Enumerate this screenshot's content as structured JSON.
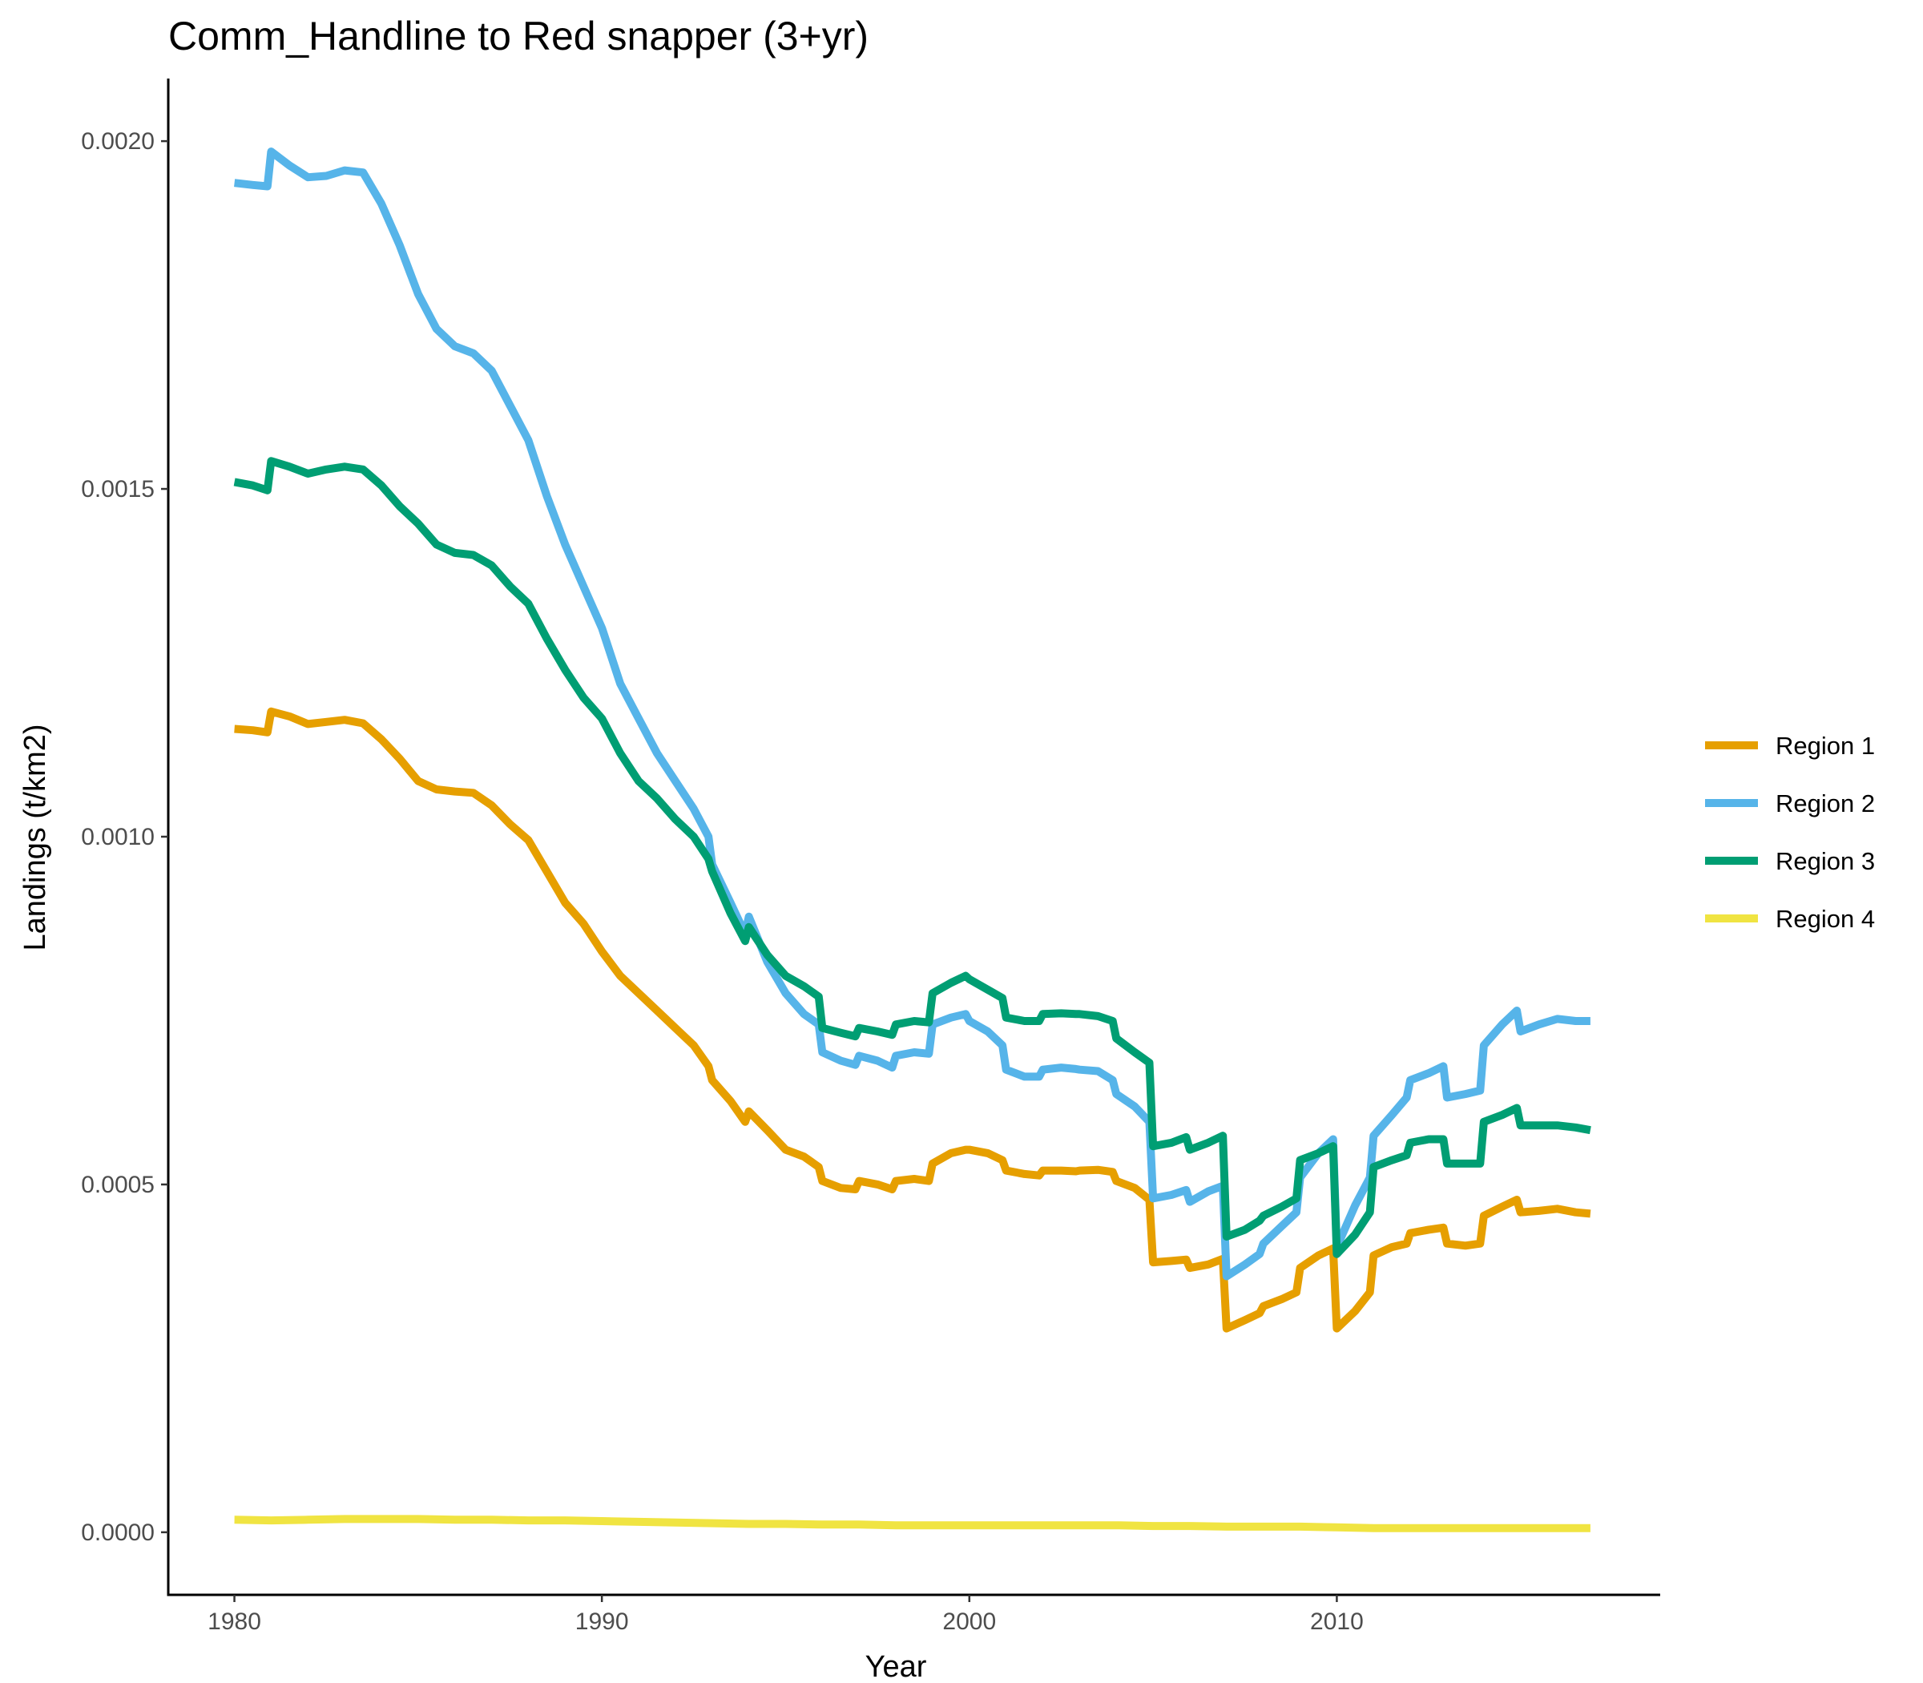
{
  "chart_data": {
    "type": "line",
    "title": "Comm_Handline to Red snapper (3+yr)",
    "xlabel": "Year",
    "ylabel": "Landings (t/km2)",
    "xlim": [
      1978.2,
      2018.8
    ],
    "ylim": [
      -9e-05,
      0.00209
    ],
    "x_ticks": [
      1980,
      1990,
      2000,
      2010
    ],
    "x_tick_labels": [
      "1980",
      "1990",
      "2000",
      "2010"
    ],
    "y_ticks": [
      0,
      0.0005,
      0.001,
      0.0015,
      0.002
    ],
    "y_tick_labels": [
      "0.0000",
      "0.0005",
      "0.0010",
      "0.0015",
      "0.0020"
    ],
    "grid": false,
    "legend_position": "right",
    "series": [
      {
        "name": "Region 1",
        "color": "#E69F00",
        "x": [
          1980.0,
          1980.5,
          1980.9,
          1981.0,
          1981.5,
          1982.0,
          1982.5,
          1983.0,
          1983.5,
          1984.0,
          1984.5,
          1985.0,
          1985.5,
          1986.0,
          1986.5,
          1987.0,
          1987.5,
          1988.0,
          1988.5,
          1989.0,
          1989.5,
          1990.0,
          1990.5,
          1991.0,
          1991.5,
          1992.0,
          1992.5,
          1992.9,
          1993.0,
          1993.5,
          1993.9,
          1994.0,
          1994.5,
          1995.0,
          1995.5,
          1995.9,
          1996.0,
          1996.5,
          1996.9,
          1997.0,
          1997.5,
          1997.9,
          1998.0,
          1998.5,
          1998.9,
          1999.0,
          1999.5,
          1999.9,
          2000.0,
          2000.5,
          2000.9,
          2001.0,
          2001.5,
          2001.9,
          2002.0,
          2002.5,
          2002.9,
          2003.0,
          2003.5,
          2003.9,
          2004.0,
          2004.5,
          2004.9,
          2005.0,
          2005.5,
          2005.9,
          2006.0,
          2006.5,
          2006.9,
          2007.0,
          2007.5,
          2007.9,
          2008.0,
          2008.5,
          2008.9,
          2009.0,
          2009.5,
          2009.9,
          2010.0,
          2010.5,
          2010.9,
          2011.0,
          2011.5,
          2011.9,
          2012.0,
          2012.5,
          2012.9,
          2013.0,
          2013.5,
          2013.9,
          2014.0,
          2014.5,
          2014.9,
          2015.0,
          2015.5,
          2016.0,
          2016.5,
          2016.9
        ],
        "values": [
          0.001155,
          0.001153,
          0.00115,
          0.00118,
          0.001173,
          0.001162,
          0.001165,
          0.001168,
          0.001163,
          0.00114,
          0.001112,
          0.00108,
          0.001068,
          0.001065,
          0.001063,
          0.001045,
          0.001018,
          0.000995,
          0.00095,
          0.000905,
          0.000875,
          0.000835,
          0.0008,
          0.000775,
          0.00075,
          0.000725,
          0.0007,
          0.00067,
          0.00065,
          0.00062,
          0.00059,
          0.000605,
          0.000578,
          0.00055,
          0.00054,
          0.000525,
          0.000505,
          0.000495,
          0.000493,
          0.000505,
          0.0005,
          0.000493,
          0.000505,
          0.000508,
          0.000505,
          0.00053,
          0.000545,
          0.00055,
          0.00055,
          0.000545,
          0.000535,
          0.00052,
          0.000515,
          0.000513,
          0.00052,
          0.00052,
          0.000519,
          0.00052,
          0.000521,
          0.000518,
          0.000505,
          0.000495,
          0.000478,
          0.000388,
          0.00039,
          0.000392,
          0.00038,
          0.000385,
          0.000393,
          0.000293,
          0.000305,
          0.000315,
          0.000325,
          0.000335,
          0.000345,
          0.00038,
          0.000398,
          0.000408,
          0.000293,
          0.000318,
          0.000345,
          0.000398,
          0.00041,
          0.000415,
          0.00043,
          0.000435,
          0.000438,
          0.000415,
          0.000412,
          0.000415,
          0.000455,
          0.000468,
          0.000478,
          0.00046,
          0.000462,
          0.000465,
          0.00046,
          0.000458
        ]
      },
      {
        "name": "Region 2",
        "color": "#56B4E9",
        "x": [
          1980.0,
          1980.5,
          1980.9,
          1981.0,
          1981.5,
          1982.0,
          1982.5,
          1983.0,
          1983.5,
          1984.0,
          1984.5,
          1985.0,
          1985.5,
          1986.0,
          1986.5,
          1987.0,
          1987.5,
          1988.0,
          1988.5,
          1989.0,
          1989.5,
          1990.0,
          1990.5,
          1991.0,
          1991.5,
          1992.0,
          1992.5,
          1992.9,
          1993.0,
          1993.5,
          1993.9,
          1994.0,
          1994.5,
          1995.0,
          1995.5,
          1995.9,
          1996.0,
          1996.5,
          1996.9,
          1997.0,
          1997.5,
          1997.9,
          1998.0,
          1998.5,
          1998.9,
          1999.0,
          1999.5,
          1999.9,
          2000.0,
          2000.5,
          2000.9,
          2001.0,
          2001.5,
          2001.9,
          2002.0,
          2002.5,
          2002.9,
          2003.0,
          2003.5,
          2003.9,
          2004.0,
          2004.5,
          2004.9,
          2005.0,
          2005.5,
          2005.9,
          2006.0,
          2006.5,
          2006.9,
          2007.0,
          2007.5,
          2007.9,
          2008.0,
          2008.5,
          2008.9,
          2009.0,
          2009.5,
          2009.9,
          2010.0,
          2010.5,
          2010.9,
          2011.0,
          2011.5,
          2011.9,
          2012.0,
          2012.5,
          2012.9,
          2013.0,
          2013.5,
          2013.9,
          2014.0,
          2014.5,
          2014.9,
          2015.0,
          2015.5,
          2016.0,
          2016.5,
          2016.9
        ],
        "values": [
          0.00194,
          0.001937,
          0.001935,
          0.001985,
          0.001965,
          0.001948,
          0.00195,
          0.001958,
          0.001955,
          0.00191,
          0.00185,
          0.00178,
          0.00173,
          0.001705,
          0.001695,
          0.00167,
          0.00162,
          0.00157,
          0.00149,
          0.00142,
          0.00136,
          0.0013,
          0.00122,
          0.00117,
          0.00112,
          0.00108,
          0.00104,
          0.001,
          0.00096,
          0.000905,
          0.00086,
          0.000885,
          0.00082,
          0.000775,
          0.000745,
          0.00073,
          0.00069,
          0.000678,
          0.000672,
          0.000685,
          0.000678,
          0.000668,
          0.000685,
          0.00069,
          0.000688,
          0.00073,
          0.00074,
          0.000745,
          0.000735,
          0.00072,
          0.0007,
          0.000665,
          0.000655,
          0.000655,
          0.000665,
          0.000668,
          0.000666,
          0.000665,
          0.000663,
          0.00065,
          0.00063,
          0.000612,
          0.00059,
          0.00048,
          0.000485,
          0.000492,
          0.000475,
          0.00049,
          0.000498,
          0.000368,
          0.000385,
          0.0004,
          0.000415,
          0.00044,
          0.00046,
          0.00051,
          0.000545,
          0.000565,
          0.00041,
          0.00047,
          0.00051,
          0.00057,
          0.0006,
          0.000625,
          0.00065,
          0.00066,
          0.00067,
          0.000625,
          0.00063,
          0.000635,
          0.0007,
          0.00073,
          0.00075,
          0.00072,
          0.00073,
          0.000738,
          0.000735,
          0.000735
        ]
      },
      {
        "name": "Region 3",
        "color": "#009E73",
        "x": [
          1980.0,
          1980.5,
          1980.9,
          1981.0,
          1981.5,
          1982.0,
          1982.5,
          1983.0,
          1983.5,
          1984.0,
          1984.5,
          1985.0,
          1985.5,
          1986.0,
          1986.5,
          1987.0,
          1987.5,
          1988.0,
          1988.5,
          1989.0,
          1989.5,
          1990.0,
          1990.5,
          1991.0,
          1991.5,
          1992.0,
          1992.5,
          1992.9,
          1993.0,
          1993.5,
          1993.9,
          1994.0,
          1994.5,
          1995.0,
          1995.5,
          1995.9,
          1996.0,
          1996.5,
          1996.9,
          1997.0,
          1997.5,
          1997.9,
          1998.0,
          1998.5,
          1998.9,
          1999.0,
          1999.5,
          1999.9,
          2000.0,
          2000.5,
          2000.9,
          2001.0,
          2001.5,
          2001.9,
          2002.0,
          2002.5,
          2002.9,
          2003.0,
          2003.5,
          2003.9,
          2004.0,
          2004.5,
          2004.9,
          2005.0,
          2005.5,
          2005.9,
          2006.0,
          2006.5,
          2006.9,
          2007.0,
          2007.5,
          2007.9,
          2008.0,
          2008.5,
          2008.9,
          2009.0,
          2009.5,
          2009.9,
          2010.0,
          2010.5,
          2010.9,
          2011.0,
          2011.5,
          2011.9,
          2012.0,
          2012.5,
          2012.9,
          2013.0,
          2013.5,
          2013.9,
          2014.0,
          2014.5,
          2014.9,
          2015.0,
          2015.5,
          2016.0,
          2016.5,
          2016.9
        ],
        "values": [
          0.00151,
          0.001505,
          0.001498,
          0.00154,
          0.001532,
          0.001522,
          0.001528,
          0.001532,
          0.001528,
          0.001505,
          0.001475,
          0.00145,
          0.00142,
          0.001408,
          0.001405,
          0.00139,
          0.00136,
          0.001335,
          0.001285,
          0.00124,
          0.0012,
          0.00117,
          0.00112,
          0.00108,
          0.001055,
          0.001025,
          0.001,
          0.000968,
          0.00095,
          0.00089,
          0.00085,
          0.00087,
          0.00083,
          0.0008,
          0.000785,
          0.00077,
          0.000725,
          0.000718,
          0.000713,
          0.000725,
          0.00072,
          0.000715,
          0.00073,
          0.000735,
          0.000733,
          0.000775,
          0.00079,
          0.0008,
          0.000795,
          0.00078,
          0.000768,
          0.00074,
          0.000735,
          0.000735,
          0.000745,
          0.000746,
          0.000745,
          0.000745,
          0.000742,
          0.000735,
          0.00071,
          0.00069,
          0.000675,
          0.000555,
          0.00056,
          0.000568,
          0.00055,
          0.00056,
          0.00057,
          0.000425,
          0.000435,
          0.000448,
          0.000455,
          0.000468,
          0.00048,
          0.000535,
          0.000545,
          0.000555,
          0.0004,
          0.000428,
          0.00046,
          0.000525,
          0.000535,
          0.000542,
          0.00056,
          0.000565,
          0.000565,
          0.00053,
          0.00053,
          0.00053,
          0.00059,
          0.0006,
          0.00061,
          0.000585,
          0.000585,
          0.000585,
          0.000582,
          0.000578
        ]
      },
      {
        "name": "Region 4",
        "color": "#F0E442",
        "x": [
          1980.0,
          1981.0,
          1982.0,
          1983.0,
          1984.0,
          1985.0,
          1986.0,
          1987.0,
          1988.0,
          1989.0,
          1990.0,
          1991.0,
          1992.0,
          1993.0,
          1994.0,
          1995.0,
          1996.0,
          1997.0,
          1998.0,
          1999.0,
          2000.0,
          2001.0,
          2002.0,
          2003.0,
          2004.0,
          2005.0,
          2006.0,
          2007.0,
          2008.0,
          2009.0,
          2010.0,
          2011.0,
          2012.0,
          2013.0,
          2014.0,
          2015.0,
          2016.0,
          2016.9
        ],
        "values": [
          1.8e-05,
          1.7e-05,
          1.8e-05,
          1.9e-05,
          1.9e-05,
          1.9e-05,
          1.8e-05,
          1.8e-05,
          1.7e-05,
          1.7e-05,
          1.6e-05,
          1.5e-05,
          1.4e-05,
          1.3e-05,
          1.2e-05,
          1.2e-05,
          1.1e-05,
          1.1e-05,
          1e-05,
          1e-05,
          1e-05,
          1e-05,
          1e-05,
          1e-05,
          1e-05,
          9e-06,
          9e-06,
          8e-06,
          8e-06,
          8e-06,
          7e-06,
          6e-06,
          6e-06,
          6e-06,
          6e-06,
          6e-06,
          6e-06,
          6e-06
        ]
      }
    ]
  }
}
